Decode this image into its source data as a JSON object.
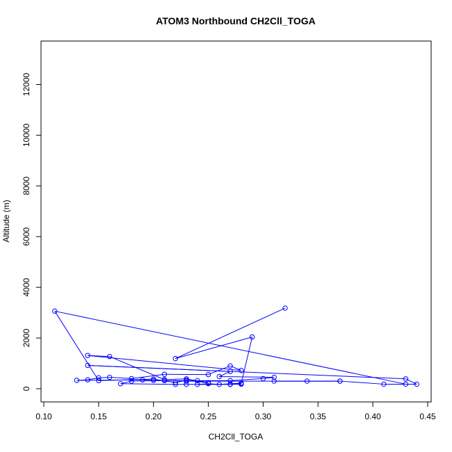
{
  "chart_data": {
    "type": "line",
    "title": "ATOM3 Northbound CH2Cll_TOGA",
    "xlabel": "CH2Cll_TOGA",
    "ylabel": "Altitude (m)",
    "xlim": [
      0.1,
      0.45
    ],
    "ylim": [
      0,
      12000
    ],
    "x_ticks": [
      0.1,
      0.15,
      0.2,
      0.25,
      0.3,
      0.35,
      0.4,
      0.45
    ],
    "x_tick_labels": [
      "0.10",
      "0.15",
      "0.20",
      "0.25",
      "0.30",
      "0.35",
      "0.40",
      "0.45"
    ],
    "y_ticks": [
      0,
      2000,
      4000,
      6000,
      8000,
      10000,
      12000
    ],
    "y_tick_labels": [
      "0",
      "2000",
      "4000",
      "6000",
      "8000",
      "10000",
      "12000"
    ],
    "grid": false,
    "color": "#0000ff",
    "marker": "open-circle",
    "series": [
      {
        "x": [
          0.32,
          0.22,
          0.29,
          0.28,
          0.27,
          0.28,
          0.26,
          0.25,
          0.24,
          0.27,
          0.28,
          0.23,
          0.22,
          0.17,
          0.18,
          0.21,
          0.24,
          0.27,
          0.3,
          0.31,
          0.26,
          0.27,
          0.14,
          0.43,
          0.44,
          0.41,
          0.37,
          0.34,
          0.31,
          0.37,
          0.23,
          0.2,
          0.19,
          0.13,
          0.14,
          0.15,
          0.16,
          0.18,
          0.21,
          0.25,
          0.27,
          0.28,
          0.14,
          0.16,
          0.21,
          0.23,
          0.25,
          0.23,
          0.22,
          0.2,
          0.15,
          0.11,
          0.43
        ],
        "y": [
          3180,
          1190,
          2040,
          200,
          180,
          220,
          170,
          200,
          170,
          170,
          180,
          170,
          170,
          200,
          300,
          320,
          320,
          320,
          400,
          450,
          480,
          680,
          920,
          390,
          180,
          180,
          300,
          300,
          300,
          300,
          300,
          330,
          350,
          330,
          350,
          430,
          450,
          400,
          570,
          560,
          900,
          720,
          1310,
          1270,
          360,
          390,
          230,
          340,
          240,
          380,
          320,
          3060,
          180
        ]
      }
    ]
  }
}
